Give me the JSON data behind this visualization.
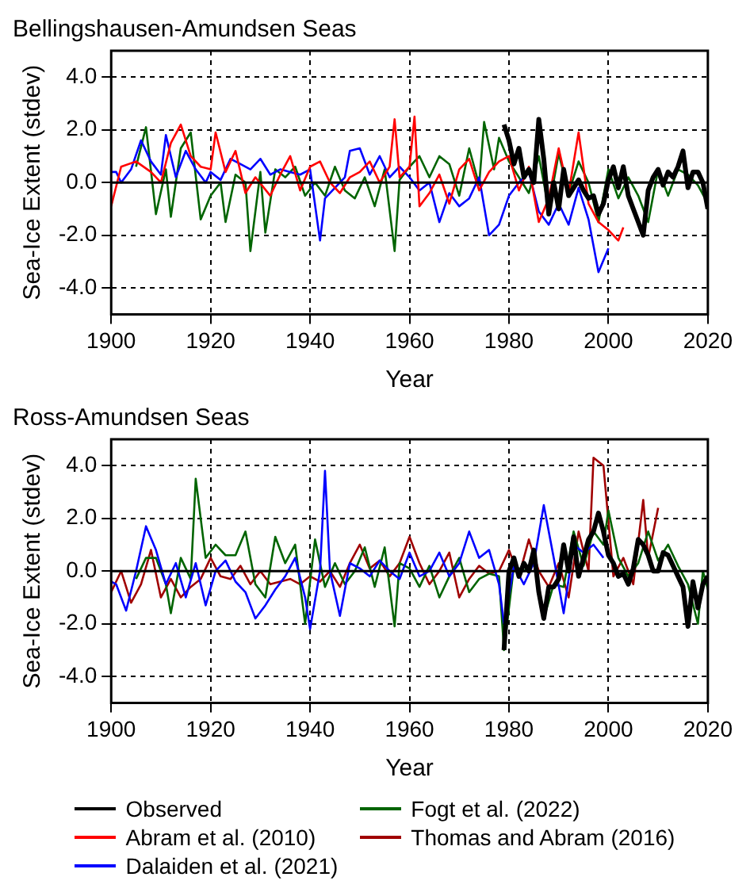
{
  "chart_data": [
    {
      "type": "line",
      "title": "Bellingshausen-Amundsen Seas",
      "xlabel": "Year",
      "ylabel": "Sea-Ice Extent (stdev)",
      "xlim": [
        1900,
        2020
      ],
      "xticks": [
        1900,
        1920,
        1940,
        1960,
        1980,
        2000,
        2020
      ],
      "ylim": [
        -5,
        5
      ],
      "yticks": [
        {
          "value": -4,
          "label": "-4.0"
        },
        {
          "value": -2,
          "label": "-2.0"
        },
        {
          "value": 0,
          "label": "0.0"
        },
        {
          "value": 2,
          "label": "2.0"
        },
        {
          "value": 4,
          "label": "4.0"
        }
      ],
      "grid": true,
      "legend": "bottom",
      "ref_lines": [
        {
          "axis": "y",
          "value": 0,
          "color": "#000000",
          "line_style": "solid"
        }
      ],
      "series": [
        {
          "name": "Observed",
          "color": "#000000",
          "x": [
            1979,
            1980,
            1981,
            1982,
            1983,
            1984,
            1985,
            1986,
            1987,
            1988,
            1989,
            1990,
            1991,
            1992,
            1993,
            1994,
            1995,
            1996,
            1997,
            1998,
            1999,
            2000,
            2001,
            2002,
            2003,
            2004,
            2005,
            2006,
            2007,
            2008,
            2009,
            2010,
            2011,
            2012,
            2013,
            2014,
            2015,
            2016,
            2017,
            2018,
            2019,
            2020
          ],
          "values": [
            2.2,
            1.6,
            0.7,
            1.3,
            0.2,
            0.5,
            0.0,
            2.4,
            0.9,
            -1.2,
            0.0,
            -1.0,
            0.5,
            -0.5,
            -0.2,
            0.1,
            -0.3,
            -0.6,
            -0.5,
            -1.2,
            -0.8,
            0.1,
            0.6,
            -0.2,
            0.6,
            -0.5,
            -1.0,
            -1.5,
            -2.0,
            -0.3,
            0.2,
            0.5,
            -0.1,
            0.4,
            0.2,
            0.6,
            1.2,
            -0.2,
            0.4,
            0.4,
            0.0,
            -1.0
          ]
        },
        {
          "name": "Abram et al. (2010)",
          "color": "#ff0000",
          "x": [
            1900,
            1902,
            1905,
            1908,
            1910,
            1912,
            1914,
            1916,
            1918,
            1920,
            1921,
            1923,
            1925,
            1927,
            1929,
            1932,
            1934,
            1936,
            1938,
            1940,
            1942,
            1944,
            1946,
            1948,
            1950,
            1952,
            1954,
            1956,
            1957,
            1958,
            1960,
            1961,
            1962,
            1964,
            1966,
            1968,
            1970,
            1972,
            1974,
            1976,
            1978,
            1980,
            1982,
            1984,
            1986,
            1988,
            1990,
            1992,
            1994,
            1996,
            1998,
            2000,
            2002,
            2003
          ],
          "values": [
            -0.9,
            0.6,
            0.8,
            0.4,
            0.0,
            1.5,
            2.2,
            1.0,
            0.6,
            0.5,
            1.9,
            0.4,
            1.2,
            -0.4,
            0.2,
            -0.5,
            0.3,
            1.0,
            -0.3,
            0.6,
            0.8,
            0.0,
            -0.4,
            0.2,
            0.4,
            0.8,
            0.0,
            0.6,
            2.4,
            0.2,
            0.6,
            2.5,
            -0.9,
            -0.4,
            0.3,
            -0.8,
            0.5,
            0.9,
            -0.3,
            0.4,
            0.8,
            1.0,
            -0.3,
            0.6,
            -1.5,
            -0.6,
            1.3,
            -0.4,
            1.9,
            -0.8,
            -1.5,
            -1.8,
            -2.2,
            -1.7
          ]
        },
        {
          "name": "Dalaiden et al. (2021)",
          "color": "#0000ff",
          "x": [
            1900,
            1901,
            1902,
            1904,
            1906,
            1908,
            1910,
            1911,
            1913,
            1915,
            1917,
            1919,
            1920,
            1922,
            1924,
            1926,
            1928,
            1930,
            1932,
            1934,
            1936,
            1938,
            1940,
            1942,
            1943,
            1945,
            1947,
            1948,
            1950,
            1952,
            1954,
            1956,
            1958,
            1960,
            1962,
            1964,
            1966,
            1968,
            1970,
            1972,
            1974,
            1976,
            1978,
            1980,
            1982,
            1984,
            1986,
            1988,
            1990,
            1992,
            1994,
            1996,
            1998,
            2000
          ],
          "values": [
            0.4,
            0.4,
            0.0,
            0.5,
            1.6,
            0.8,
            0.3,
            1.8,
            0.2,
            1.2,
            0.5,
            0.0,
            0.4,
            0.1,
            0.9,
            0.7,
            0.5,
            0.9,
            0.3,
            0.5,
            0.4,
            0.3,
            0.5,
            -2.2,
            -0.6,
            -0.2,
            0.2,
            1.2,
            1.3,
            0.3,
            1.0,
            0.2,
            0.6,
            0.2,
            -0.3,
            0.0,
            -1.5,
            -0.4,
            -0.9,
            -0.6,
            0.2,
            -2.0,
            -1.6,
            -0.5,
            0.0,
            0.4,
            -1.1,
            -1.6,
            -0.8,
            -1.6,
            -0.2,
            -1.4,
            -3.4,
            -2.5
          ]
        },
        {
          "name": "Fogt et al. (2022)",
          "color": "#006400",
          "x": [
            1905,
            1907,
            1909,
            1911,
            1912,
            1914,
            1916,
            1918,
            1920,
            1922,
            1923,
            1925,
            1927,
            1928,
            1930,
            1931,
            1933,
            1935,
            1937,
            1939,
            1941,
            1943,
            1945,
            1947,
            1949,
            1951,
            1953,
            1955,
            1957,
            1958,
            1960,
            1962,
            1964,
            1966,
            1968,
            1970,
            1972,
            1974,
            1975,
            1977,
            1978,
            1980,
            1982,
            1984,
            1986,
            1988,
            1990,
            1992,
            1994,
            1996,
            1998,
            2000,
            2002,
            2004,
            2006,
            2008,
            2010,
            2012,
            2014,
            2016,
            2018,
            2020
          ],
          "values": [
            0.6,
            2.1,
            -1.2,
            0.5,
            -1.3,
            1.3,
            1.9,
            -1.4,
            -0.5,
            0.0,
            -1.5,
            0.3,
            0.0,
            -2.6,
            0.4,
            -1.9,
            0.5,
            0.2,
            0.6,
            -0.5,
            0.0,
            -0.5,
            0.6,
            -0.3,
            -0.6,
            0.2,
            -0.9,
            0.5,
            -2.6,
            0.1,
            0.6,
            1.0,
            0.2,
            1.0,
            0.7,
            -0.5,
            1.3,
            -0.1,
            2.3,
            0.5,
            1.7,
            0.8,
            0.2,
            -0.4,
            1.0,
            -1.0,
            1.1,
            -0.4,
            0.8,
            0.0,
            -1.5,
            0.5,
            -0.6,
            0.2,
            -0.5,
            -1.5,
            0.5,
            -0.5,
            0.5,
            0.3,
            -0.1,
            -0.8
          ]
        }
      ]
    },
    {
      "type": "line",
      "title": "Ross-Amundsen Seas",
      "xlabel": "Year",
      "ylabel": "Sea-Ice Extent (stdev)",
      "xlim": [
        1900,
        2020
      ],
      "xticks": [
        1900,
        1920,
        1940,
        1960,
        1980,
        2000,
        2020
      ],
      "ylim": [
        -5,
        5
      ],
      "yticks": [
        {
          "value": -4,
          "label": "-4.0"
        },
        {
          "value": -2,
          "label": "-2.0"
        },
        {
          "value": 0,
          "label": "0.0"
        },
        {
          "value": 2,
          "label": "2.0"
        },
        {
          "value": 4,
          "label": "4.0"
        }
      ],
      "grid": true,
      "legend": "bottom",
      "ref_lines": [
        {
          "axis": "y",
          "value": 0,
          "color": "#000000",
          "line_style": "solid"
        }
      ],
      "series": [
        {
          "name": "Observed",
          "color": "#000000",
          "x": [
            1979,
            1980,
            1981,
            1982,
            1983,
            1984,
            1985,
            1986,
            1987,
            1988,
            1989,
            1990,
            1991,
            1992,
            1993,
            1994,
            1995,
            1996,
            1997,
            1998,
            1999,
            2000,
            2001,
            2002,
            2003,
            2004,
            2005,
            2006,
            2007,
            2008,
            2009,
            2010,
            2011,
            2012,
            2013,
            2014,
            2015,
            2016,
            2017,
            2018,
            2019,
            2020
          ],
          "values": [
            -3.0,
            0.0,
            0.5,
            -0.2,
            0.3,
            0.0,
            0.8,
            -0.8,
            -1.8,
            -0.6,
            -0.6,
            -0.3,
            1.0,
            0.0,
            1.3,
            -0.2,
            0.5,
            1.2,
            1.5,
            2.2,
            1.5,
            0.6,
            0.3,
            -0.2,
            -0.1,
            -0.5,
            0.1,
            1.2,
            1.0,
            0.6,
            0.0,
            0.0,
            0.7,
            0.6,
            0.2,
            -0.2,
            -0.6,
            -2.1,
            -0.4,
            -1.4,
            -0.5,
            -0.2
          ]
        },
        {
          "name": "Dalaiden et al. (2021)",
          "color": "#0000ff",
          "x": [
            1900,
            1901,
            1903,
            1905,
            1907,
            1909,
            1911,
            1913,
            1915,
            1917,
            1919,
            1921,
            1923,
            1925,
            1927,
            1929,
            1931,
            1933,
            1935,
            1937,
            1939,
            1940,
            1942,
            1943,
            1944,
            1946,
            1948,
            1950,
            1952,
            1954,
            1956,
            1958,
            1960,
            1962,
            1964,
            1966,
            1968,
            1970,
            1972,
            1974,
            1976,
            1978,
            1979,
            1981,
            1983,
            1985,
            1987,
            1989,
            1991,
            1993,
            1995,
            1997,
            1999
          ],
          "values": [
            -0.4,
            -0.5,
            -1.5,
            0.0,
            1.7,
            0.8,
            -0.5,
            0.3,
            -1.0,
            0.3,
            -1.3,
            0.0,
            0.4,
            -0.4,
            -0.8,
            -1.8,
            -1.3,
            -0.7,
            -0.2,
            0.5,
            -1.0,
            -2.2,
            0.0,
            3.8,
            0.0,
            -1.7,
            0.3,
            0.1,
            -0.2,
            0.4,
            0.0,
            -0.3,
            0.7,
            -0.2,
            0.0,
            0.7,
            -0.2,
            0.3,
            1.5,
            0.5,
            0.8,
            -0.5,
            -2.0,
            0.2,
            -0.5,
            0.3,
            2.5,
            0.5,
            -1.6,
            1.0,
            0.7,
            1.0,
            0.5
          ]
        },
        {
          "name": "Fogt et al. (2022)",
          "color": "#006400",
          "x": [
            1905,
            1907,
            1909,
            1911,
            1912,
            1914,
            1916,
            1917,
            1919,
            1921,
            1923,
            1925,
            1927,
            1929,
            1931,
            1933,
            1935,
            1937,
            1939,
            1941,
            1943,
            1945,
            1947,
            1949,
            1951,
            1953,
            1955,
            1957,
            1958,
            1960,
            1962,
            1964,
            1966,
            1968,
            1970,
            1972,
            1974,
            1976,
            1978,
            1979,
            1981,
            1983,
            1985,
            1987,
            1989,
            1991,
            1993,
            1995,
            1997,
            1999,
            2000,
            2002,
            2004,
            2006,
            2008,
            2010,
            2012,
            2014,
            2016,
            2018,
            2019,
            2020
          ],
          "values": [
            -0.3,
            0.5,
            0.5,
            -0.5,
            -1.6,
            0.5,
            -0.3,
            3.5,
            0.5,
            1.0,
            0.6,
            0.6,
            1.5,
            -0.5,
            -1.0,
            1.3,
            0.3,
            1.0,
            -2.0,
            1.2,
            -0.6,
            0.3,
            -0.5,
            0.0,
            0.9,
            -0.6,
            0.9,
            -2.1,
            0.3,
            0.1,
            -0.6,
            0.2,
            -1.0,
            -0.2,
            0.5,
            -0.8,
            -0.3,
            -0.1,
            -0.2,
            -3.0,
            0.2,
            0.0,
            0.3,
            -1.8,
            -0.5,
            -0.6,
            1.5,
            0.2,
            1.5,
            1.0,
            2.3,
            0.5,
            -0.2,
            0.3,
            1.5,
            0.4,
            1.0,
            0.2,
            -0.5,
            -2.0,
            0.0,
            -0.7
          ]
        },
        {
          "name": "Thomas and Abram (2016)",
          "color": "#a00000",
          "x": [
            1900,
            1902,
            1904,
            1906,
            1908,
            1910,
            1912,
            1914,
            1916,
            1918,
            1920,
            1922,
            1924,
            1926,
            1928,
            1930,
            1932,
            1934,
            1936,
            1938,
            1940,
            1942,
            1944,
            1946,
            1948,
            1950,
            1952,
            1954,
            1956,
            1958,
            1960,
            1962,
            1964,
            1966,
            1968,
            1970,
            1972,
            1974,
            1976,
            1978,
            1980,
            1982,
            1984,
            1986,
            1988,
            1990,
            1992,
            1994,
            1996,
            1997,
            1999,
            2001,
            2003,
            2005,
            2007,
            2008,
            2010
          ],
          "values": [
            -0.8,
            0.0,
            -1.2,
            -0.5,
            0.8,
            -1.0,
            -0.3,
            -1.0,
            -0.6,
            -0.3,
            0.5,
            -0.2,
            -0.3,
            0.2,
            -0.5,
            0.0,
            -0.5,
            -0.4,
            -0.3,
            -0.5,
            -0.2,
            -0.4,
            0.0,
            -0.6,
            0.3,
            1.0,
            0.1,
            0.4,
            -0.2,
            0.3,
            1.3,
            0.3,
            -0.5,
            0.0,
            0.7,
            -1.0,
            -0.3,
            0.2,
            -0.1,
            0.0,
            0.8,
            -0.2,
            1.2,
            0.0,
            -0.6,
            0.3,
            -1.0,
            1.5,
            0.0,
            4.3,
            4.0,
            -0.2,
            0.5,
            -0.5,
            2.7,
            0.5,
            2.4
          ]
        }
      ]
    }
  ]
}
